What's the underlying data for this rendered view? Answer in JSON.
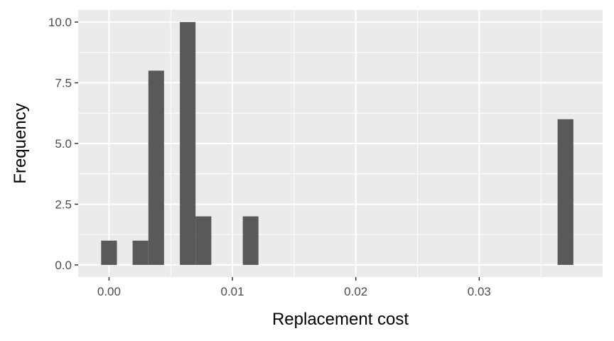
{
  "chart_data": {
    "type": "bar",
    "xlabel": "Replacement cost",
    "ylabel": "Frequency",
    "xlim": [
      -0.0025,
      0.04
    ],
    "ylim": [
      -0.5,
      10.5
    ],
    "x_ticks": [
      0.0,
      0.01,
      0.02,
      0.03
    ],
    "x_tick_labels": [
      "0.00",
      "0.01",
      "0.02",
      "0.03"
    ],
    "y_ticks": [
      0.0,
      2.5,
      5.0,
      7.5,
      10.0
    ],
    "y_tick_labels": [
      "0.0",
      "2.5",
      "5.0",
      "7.5",
      "10.0"
    ],
    "grid": true,
    "bar_color": "#595959",
    "panel_color": "#ebebeb",
    "bins": [
      {
        "x0": -0.00064,
        "x1": 0.00064,
        "count": 1
      },
      {
        "x0": 0.00191,
        "x1": 0.00319,
        "count": 1
      },
      {
        "x0": 0.00319,
        "x1": 0.00446,
        "count": 8
      },
      {
        "x0": 0.00574,
        "x1": 0.00701,
        "count": 10
      },
      {
        "x0": 0.00701,
        "x1": 0.00829,
        "count": 2
      },
      {
        "x0": 0.01084,
        "x1": 0.01211,
        "count": 2
      },
      {
        "x0": 0.03635,
        "x1": 0.03763,
        "count": 6
      }
    ]
  }
}
